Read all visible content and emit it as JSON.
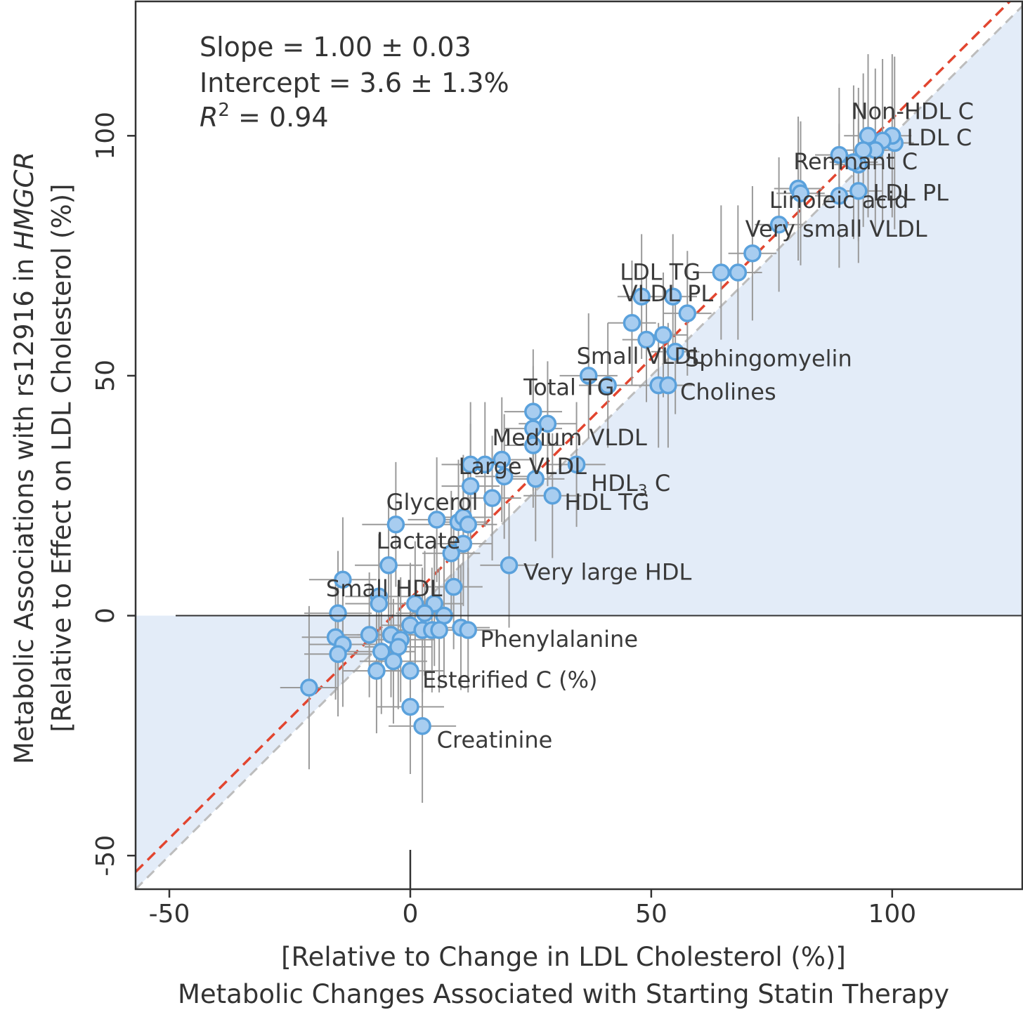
{
  "chart_data": {
    "type": "scatter",
    "xlabel_lines": [
      "[Relative to Change in LDL Cholesterol (%)]",
      "Metabolic Changes Associated with Starting Statin Therapy"
    ],
    "ylabel_lines": [
      "Metabolic Associations with rs12916 in HMGCR",
      "[Relative to Effect on LDL Cholesterol (%)]"
    ],
    "ylabel_gene": "HMGCR",
    "xlim": [
      -57,
      127
    ],
    "ylim": [
      -57,
      128
    ],
    "xticks": [
      "-50",
      "0",
      "50",
      "100"
    ],
    "yticks": [
      "-50",
      "0",
      "50",
      "100"
    ],
    "grid": false,
    "stats": {
      "slope": "Slope = 1.00 ± 0.03",
      "intercept": "Intercept = 3.6 ± 1.3%",
      "r2_symbol": "R",
      "r2_power": "2",
      "r2_value": " = 0.94"
    },
    "fit_line": {
      "slope": 1.0,
      "intercept": 3.6,
      "color": "#e2452f"
    },
    "identity_line": {
      "slope": 1.0,
      "intercept": 0,
      "color": "#bdbdbd"
    },
    "colors": {
      "point_fill": "#a8cdf0",
      "point_stroke": "#5aa1dc",
      "error_bar": "#9a9a9a",
      "shade": "#e3ecf8"
    },
    "points": [
      {
        "x": 100.5,
        "y": 98.5,
        "xe": 4,
        "ye": 18
      },
      {
        "x": 100,
        "y": 100,
        "xe": 4,
        "ye": 17
      },
      {
        "x": 98,
        "y": 99,
        "xe": 4,
        "ye": 17
      },
      {
        "x": 96.5,
        "y": 97,
        "xe": 4,
        "ye": 17
      },
      {
        "x": 95,
        "y": 100,
        "xe": 5,
        "ye": 17
      },
      {
        "x": 94,
        "y": 97,
        "xe": 5,
        "ye": 16
      },
      {
        "x": 93,
        "y": 94,
        "xe": 5,
        "ye": 16
      },
      {
        "x": 92,
        "y": 94.5,
        "xe": 5,
        "ye": 16
      },
      {
        "x": 89,
        "y": 96,
        "xe": 5,
        "ye": 14
      },
      {
        "x": 93,
        "y": 88.5,
        "xe": 5,
        "ye": 15
      },
      {
        "x": 89,
        "y": 87.5,
        "xe": 5,
        "ye": 15
      },
      {
        "x": 80.5,
        "y": 89,
        "xe": 5,
        "ye": 15
      },
      {
        "x": 81,
        "y": 88,
        "xe": 5,
        "ye": 15
      },
      {
        "x": 76.5,
        "y": 81.5,
        "xe": 5,
        "ye": 14
      },
      {
        "x": 71,
        "y": 75.5,
        "xe": 5,
        "ye": 14
      },
      {
        "x": 64.5,
        "y": 71.5,
        "xe": 5,
        "ye": 14
      },
      {
        "x": 68,
        "y": 71.5,
        "xe": 5,
        "ye": 14
      },
      {
        "x": 48,
        "y": 66.5,
        "xe": 5,
        "ye": 13
      },
      {
        "x": 54.5,
        "y": 66.5,
        "xe": 5,
        "ye": 13
      },
      {
        "x": 57.5,
        "y": 63,
        "xe": 5,
        "ye": 13
      },
      {
        "x": 46,
        "y": 61,
        "xe": 5,
        "ye": 13
      },
      {
        "x": 49,
        "y": 57.5,
        "xe": 5,
        "ye": 13
      },
      {
        "x": 52.5,
        "y": 58.5,
        "xe": 5,
        "ye": 13
      },
      {
        "x": 55,
        "y": 55,
        "xe": 5,
        "ye": 13
      },
      {
        "x": 37,
        "y": 50,
        "xe": 6,
        "ye": 13
      },
      {
        "x": 41,
        "y": 48,
        "xe": 6,
        "ye": 13
      },
      {
        "x": 51.5,
        "y": 48,
        "xe": 5,
        "ye": 13
      },
      {
        "x": 53.5,
        "y": 48,
        "xe": 5,
        "ye": 13
      },
      {
        "x": 25.5,
        "y": 42.5,
        "xe": 6,
        "ye": 13
      },
      {
        "x": 25.5,
        "y": 39,
        "xe": 6,
        "ye": 13
      },
      {
        "x": 28.5,
        "y": 40,
        "xe": 6,
        "ye": 13
      },
      {
        "x": 25.5,
        "y": 35.5,
        "xe": 6,
        "ye": 13
      },
      {
        "x": 12.5,
        "y": 31.5,
        "xe": 6,
        "ye": 13
      },
      {
        "x": 15.5,
        "y": 31.5,
        "xe": 6,
        "ye": 13
      },
      {
        "x": 19,
        "y": 32.5,
        "xe": 6,
        "ye": 13
      },
      {
        "x": 34.5,
        "y": 31.5,
        "xe": 6,
        "ye": 13
      },
      {
        "x": 19.5,
        "y": 29,
        "xe": 6,
        "ye": 13
      },
      {
        "x": 26,
        "y": 28.5,
        "xe": 6,
        "ye": 13
      },
      {
        "x": 12.5,
        "y": 27,
        "xe": 6,
        "ye": 13
      },
      {
        "x": 17,
        "y": 24.5,
        "xe": 6,
        "ye": 13
      },
      {
        "x": 29.5,
        "y": 25,
        "xe": 6,
        "ye": 13
      },
      {
        "x": 5.5,
        "y": 20,
        "xe": 6,
        "ye": 13
      },
      {
        "x": 10,
        "y": 19.5,
        "xe": 6,
        "ye": 13
      },
      {
        "x": 11,
        "y": 20.5,
        "xe": 6,
        "ye": 13
      },
      {
        "x": 12,
        "y": 19,
        "xe": 6,
        "ye": 13
      },
      {
        "x": -3,
        "y": 19,
        "xe": 7,
        "ye": 13
      },
      {
        "x": 11,
        "y": 15,
        "xe": 6,
        "ye": 13
      },
      {
        "x": 8.5,
        "y": 13,
        "xe": 6,
        "ye": 13
      },
      {
        "x": 20.5,
        "y": 10.5,
        "xe": 6,
        "ye": 13
      },
      {
        "x": -4.5,
        "y": 10.5,
        "xe": 7,
        "ye": 13
      },
      {
        "x": -14,
        "y": 7.5,
        "xe": 7,
        "ye": 13
      },
      {
        "x": 9,
        "y": 6,
        "xe": 6,
        "ye": 13
      },
      {
        "x": -6.5,
        "y": 4,
        "xe": 7,
        "ye": 13
      },
      {
        "x": -6.5,
        "y": 2.5,
        "xe": 7,
        "ye": 13
      },
      {
        "x": 1,
        "y": 2.5,
        "xe": 6,
        "ye": 13
      },
      {
        "x": 5,
        "y": 2.5,
        "xe": 6,
        "ye": 13
      },
      {
        "x": 3,
        "y": 0.5,
        "xe": 6,
        "ye": 13
      },
      {
        "x": 7,
        "y": 0,
        "xe": 6,
        "ye": 13
      },
      {
        "x": -15,
        "y": 0.5,
        "xe": 7,
        "ye": 13
      },
      {
        "x": 0,
        "y": -2,
        "xe": 6,
        "ye": 13
      },
      {
        "x": 2.5,
        "y": -3,
        "xe": 6,
        "ye": 13
      },
      {
        "x": 4.5,
        "y": -3,
        "xe": 6,
        "ye": 13
      },
      {
        "x": 6,
        "y": -3,
        "xe": 6,
        "ye": 13
      },
      {
        "x": 10.5,
        "y": -2.5,
        "xe": 6,
        "ye": 13
      },
      {
        "x": 12,
        "y": -3,
        "xe": 6,
        "ye": 13
      },
      {
        "x": -8.5,
        "y": -4,
        "xe": 7,
        "ye": 13
      },
      {
        "x": -4,
        "y": -4,
        "xe": 7,
        "ye": 13
      },
      {
        "x": -2,
        "y": -5,
        "xe": 7,
        "ye": 13
      },
      {
        "x": -15.5,
        "y": -4.5,
        "xe": 7,
        "ye": 13
      },
      {
        "x": -14,
        "y": -6,
        "xe": 7,
        "ye": 13
      },
      {
        "x": -2.5,
        "y": -6.5,
        "xe": 7,
        "ye": 13
      },
      {
        "x": -6,
        "y": -7.5,
        "xe": 7,
        "ye": 13
      },
      {
        "x": -15,
        "y": -8,
        "xe": 7,
        "ye": 13
      },
      {
        "x": -3.5,
        "y": -9.5,
        "xe": 7,
        "ye": 13
      },
      {
        "x": -7,
        "y": -11.5,
        "xe": 7,
        "ye": 13
      },
      {
        "x": 0,
        "y": -11.5,
        "xe": 7,
        "ye": 13
      },
      {
        "x": -21,
        "y": -15,
        "xe": 6,
        "ye": 17
      },
      {
        "x": 0,
        "y": -19,
        "xe": 7,
        "ye": 14
      },
      {
        "x": 2.5,
        "y": -23,
        "xe": 7,
        "ye": 16
      }
    ],
    "labels": [
      {
        "text": "Non-HDL C",
        "x": 91.5,
        "y": 103.5
      },
      {
        "text": "LDL C",
        "x": 103,
        "y": 98
      },
      {
        "text": "Remnant C",
        "x": 79.5,
        "y": 93
      },
      {
        "text": "LDL PL",
        "x": 96,
        "y": 86.5
      },
      {
        "text": "Linoleic acid",
        "x": 74.5,
        "y": 85
      },
      {
        "text": "Very small VLDL",
        "x": 69.5,
        "y": 79
      },
      {
        "text": "LDL TG",
        "x": 43.5,
        "y": 70
      },
      {
        "text": "VLDL PL",
        "x": 44,
        "y": 65.5
      },
      {
        "text": "Small VLDL",
        "x": 34.5,
        "y": 52.5
      },
      {
        "text": "Sphingomyelin",
        "x": 57,
        "y": 52
      },
      {
        "text": "Total TG",
        "x": 23.5,
        "y": 46
      },
      {
        "text": "Cholines",
        "x": 56,
        "y": 45
      },
      {
        "text": "Medium VLDL",
        "x": 17,
        "y": 35.5
      },
      {
        "text": "Large VLDL",
        "x": 10,
        "y": 29.5
      },
      {
        "text": "HDL TG",
        "x": 32,
        "y": 22
      },
      {
        "text": "Glycerol",
        "x": -5,
        "y": 22
      },
      {
        "text": "Lactate",
        "x": -7,
        "y": 14
      },
      {
        "text": "Very large HDL",
        "x": 23.5,
        "y": 7.5
      },
      {
        "text": "Small HDL",
        "x": -17.5,
        "y": 4
      },
      {
        "text": "Phenylalanine",
        "x": 14.5,
        "y": -6.5
      },
      {
        "text": "Esterified C (%)",
        "x": 2.5,
        "y": -15
      },
      {
        "text": "Creatinine",
        "x": 5.5,
        "y": -27.5
      }
    ],
    "hdl3_label": {
      "main": "HDL",
      "sub": "3",
      "tail": " C",
      "x": 37.5,
      "y": 26
    }
  }
}
